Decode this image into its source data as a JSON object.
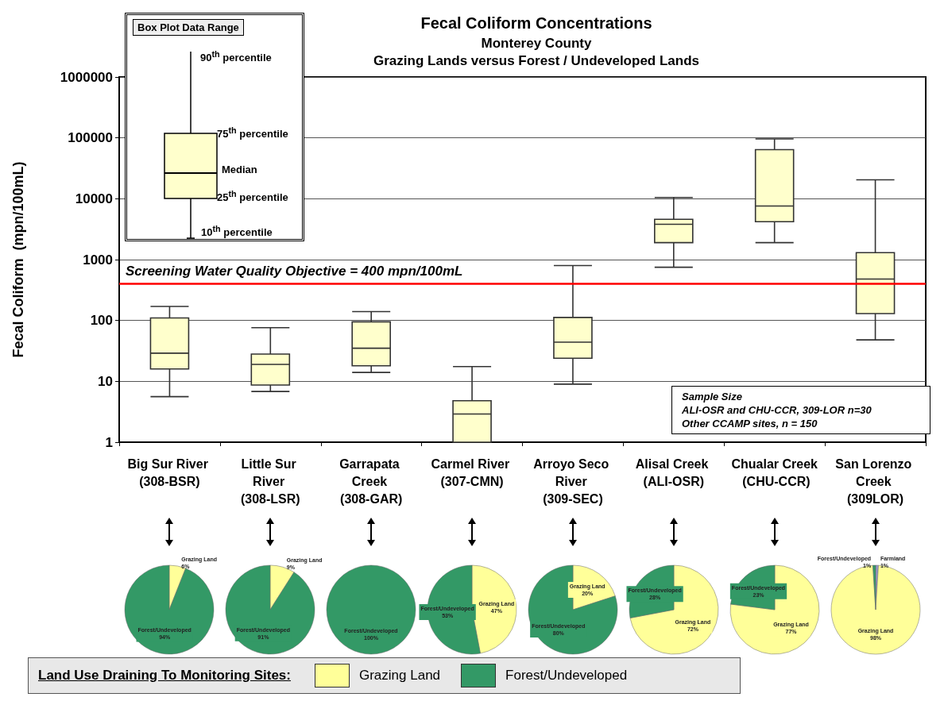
{
  "chart_data": [
    {
      "type": "box",
      "title": "Fecal Coliform Concentrations",
      "subtitle": "Monterey County\nGrazing Lands versus Forest / Undeveloped Lands",
      "ylabel": "Fecal Coliform  (mpn/100mL)",
      "categories": [
        "Big Sur River (308-BSR)",
        "Little Sur River (308-LSR)",
        "Garrapata Creek (308-GAR)",
        "Carmel River (307-CMN)",
        "Arroyo Seco River (309-SEC)",
        "Alisal Creek (ALI-OSR)",
        "Chualar Creek (CHU-CCR)",
        "San Lorenzo Creek (309LOR)"
      ],
      "color": "#ffffcc",
      "boxes": [
        {
          "low": 5.6,
          "q1": 16,
          "median": 29,
          "q3": 110,
          "high": 170
        },
        {
          "low": 6.8,
          "q1": 8.7,
          "median": 19,
          "q3": 28,
          "high": 76
        },
        {
          "low": 14,
          "q1": 18,
          "median": 35,
          "q3": 95,
          "high": 140
        },
        {
          "low": 1,
          "q1": 1,
          "median": 2.9,
          "q3": 4.8,
          "high": 17.5
        },
        {
          "low": 9,
          "q1": 24,
          "median": 44,
          "q3": 112,
          "high": 800
        },
        {
          "low": 750,
          "q1": 1900,
          "median": 3800,
          "q3": 4600,
          "high": 10500
        },
        {
          "low": 1900,
          "q1": 4200,
          "median": 7600,
          "q3": 64000,
          "high": 96000
        },
        {
          "low": 48,
          "q1": 130,
          "median": 480,
          "q3": 1300,
          "high": 20500
        }
      ],
      "log": true,
      "ylim": [
        1,
        1000000
      ],
      "yticks": [
        1,
        10,
        100,
        1000,
        10000,
        100000,
        1000000
      ],
      "grid": "y",
      "ref_lines": [
        {
          "axis": "y",
          "value": 400,
          "label": "Screening Water Quality Objective = 400 mpn/100mL",
          "color": "#ff0000"
        }
      ],
      "annotations": [
        "Box Plot Data Range",
        "90$^{th}$ percentile",
        "75$^{th}$ percentile",
        "Median",
        "25$^{th}$ percentile",
        "10$^{th}$ percentile",
        "Sample Size",
        "ALI-OSR and CHU-CCR, 309-LOR n=30",
        "Other CCAMP sites, n = 150"
      ]
    },
    {
      "type": "pie",
      "categories": [
        "Grazing Land",
        "Forest/Undeveloped"
      ],
      "values": [
        6,
        94
      ],
      "value_labels": [
        "6%",
        "94%"
      ],
      "colors": [
        "#ffff99",
        "#339966"
      ],
      "legend": "bottom",
      "legend_title": "Land Use Draining To Monitoring Sites:"
    },
    {
      "type": "pie",
      "categories": [
        "Grazing Land",
        "Forest/Undeveloped"
      ],
      "values": [
        9,
        91
      ],
      "value_labels": [
        "9%",
        "91%"
      ],
      "colors": [
        "#ffff99",
        "#339966"
      ]
    },
    {
      "type": "pie",
      "categories": [
        "Forest/Undeveloped"
      ],
      "values": [
        100
      ],
      "value_labels": [
        "100%"
      ],
      "colors": [
        "#339966"
      ]
    },
    {
      "type": "pie",
      "categories": [
        "Grazing Land",
        "Forest/Undeveloped"
      ],
      "values": [
        47,
        53
      ],
      "value_labels": [
        "47%",
        "53%"
      ],
      "colors": [
        "#ffff99",
        "#339966"
      ]
    },
    {
      "type": "pie",
      "categories": [
        "Grazing Land",
        "Forest/Undeveloped"
      ],
      "values": [
        20,
        80
      ],
      "value_labels": [
        "20%",
        "80%"
      ],
      "colors": [
        "#ffff99",
        "#339966"
      ]
    },
    {
      "type": "pie",
      "categories": [
        "Grazing Land",
        "Forest/Undeveloped"
      ],
      "values": [
        72,
        28
      ],
      "value_labels": [
        "72%",
        "28%"
      ],
      "colors": [
        "#ffff99",
        "#339966"
      ]
    },
    {
      "type": "pie",
      "categories": [
        "Grazing Land",
        "Forest/Undeveloped"
      ],
      "values": [
        77,
        23
      ],
      "value_labels": [
        "77%",
        "23%"
      ],
      "colors": [
        "#ffff99",
        "#339966"
      ]
    },
    {
      "type": "pie",
      "categories": [
        "Farmland",
        "Grazing Land",
        "Forest/Undeveloped"
      ],
      "values": [
        1,
        98,
        1
      ],
      "value_labels": [
        "1%",
        "98%",
        "1%"
      ],
      "colors": [
        "#9999cc",
        "#ffff99",
        "#339966"
      ]
    }
  ]
}
